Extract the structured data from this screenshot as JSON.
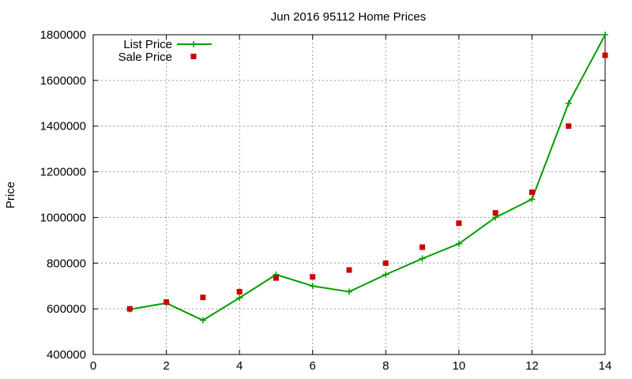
{
  "chart_data": {
    "type": "line",
    "title": "Jun 2016 95112 Home Prices",
    "xlabel": "",
    "ylabel": "Price",
    "xlim": [
      0,
      14
    ],
    "ylim": [
      400000,
      1800000
    ],
    "xticks": [
      "0",
      "2",
      "4",
      "6",
      "8",
      "10",
      "12",
      "14"
    ],
    "yticks": [
      "400000",
      "600000",
      "800000",
      "1000000",
      "1200000",
      "1400000",
      "1600000",
      "1800000"
    ],
    "grid": true,
    "legend_position": "top-left",
    "series": [
      {
        "name": "List Price",
        "style": "line-with-plus-markers",
        "color": "#009e00",
        "x": [
          1,
          2,
          3,
          4,
          5,
          6,
          7,
          8,
          9,
          10,
          11,
          12,
          13,
          14
        ],
        "y": [
          598000,
          625000,
          550000,
          648000,
          750000,
          700000,
          675000,
          750000,
          820000,
          885000,
          1000000,
          1080000,
          1500000,
          1800000
        ]
      },
      {
        "name": "Sale Price",
        "style": "square-markers",
        "color": "#cc0000",
        "x": [
          1,
          2,
          3,
          4,
          5,
          6,
          7,
          8,
          9,
          10,
          11,
          12,
          13,
          14
        ],
        "y": [
          600000,
          630000,
          650000,
          675000,
          735000,
          740000,
          770000,
          800000,
          870000,
          975000,
          1020000,
          1110000,
          1400000,
          1710000
        ]
      }
    ]
  }
}
